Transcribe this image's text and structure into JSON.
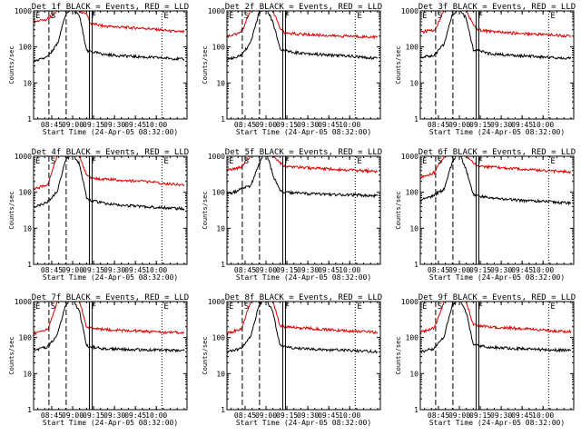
{
  "colors": {
    "events": "#000000",
    "lld": "#e00000",
    "axes": "#000000",
    "background": "#ffffff"
  },
  "shared": {
    "xlabel": "Start Time (24-Apr-05 08:32:00)",
    "ylabel": "Counts/sec",
    "x_ticks": [
      "08:45",
      "09:00",
      "09:15",
      "09:30",
      "09:45",
      "10:00"
    ],
    "y_ticks": [
      "1",
      "10",
      "100",
      "1000"
    ],
    "ylim": [
      1,
      1000
    ],
    "xlim_minutes_after_start": [
      0,
      110
    ],
    "y_scale": "log",
    "markers": {
      "E1": {
        "label": "E",
        "minute": 0,
        "style": "dotted"
      },
      "S": {
        "label": "S",
        "minute": 11,
        "style": "dashed"
      },
      "F": {
        "label": "F",
        "minute": 40,
        "style": "solid-double"
      },
      "E2": {
        "label": "E",
        "minute": 92,
        "style": "dotted"
      }
    }
  },
  "chart_data": [
    {
      "type": "line",
      "title": "Det 1f BLACK = Events, RED = LLD",
      "series": [
        {
          "name": "Events",
          "x": [
            0,
            5,
            10,
            11,
            17,
            23,
            26,
            29,
            33,
            38,
            41,
            50,
            60,
            70,
            80,
            90,
            100,
            108
          ],
          "values": [
            40,
            45,
            52,
            60,
            120,
            800,
            1000,
            1000,
            700,
            80,
            75,
            62,
            58,
            55,
            52,
            50,
            48,
            45
          ]
        },
        {
          "name": "LLD",
          "x": [
            0,
            5,
            10,
            11,
            17,
            23,
            26,
            29,
            33,
            38,
            41,
            50,
            60,
            70,
            80,
            90,
            100,
            108
          ],
          "values": [
            500,
            550,
            600,
            650,
            1000,
            1000,
            1000,
            1000,
            1000,
            800,
            450,
            380,
            360,
            340,
            330,
            300,
            270,
            260
          ]
        }
      ]
    },
    {
      "type": "line",
      "title": "Det 2f BLACK = Events, RED = LLD",
      "series": [
        {
          "name": "Events",
          "x": [
            0,
            5,
            10,
            11,
            17,
            23,
            26,
            29,
            33,
            38,
            41,
            50,
            60,
            70,
            80,
            90,
            100,
            108
          ],
          "values": [
            45,
            50,
            60,
            65,
            130,
            900,
            1000,
            1000,
            500,
            90,
            80,
            70,
            65,
            60,
            58,
            55,
            50,
            50
          ]
        },
        {
          "name": "LLD",
          "x": [
            0,
            5,
            10,
            11,
            17,
            23,
            26,
            29,
            33,
            38,
            41,
            50,
            60,
            70,
            80,
            90,
            100,
            108
          ],
          "values": [
            200,
            220,
            260,
            300,
            1000,
            1000,
            1000,
            1000,
            1000,
            350,
            250,
            230,
            220,
            210,
            200,
            200,
            190,
            190
          ]
        }
      ]
    },
    {
      "type": "line",
      "title": "Det 3f BLACK = Events, RED = LLD",
      "series": [
        {
          "name": "Events",
          "x": [
            0,
            5,
            10,
            11,
            17,
            23,
            26,
            29,
            33,
            38,
            41,
            50,
            60,
            70,
            80,
            90,
            100,
            108
          ],
          "values": [
            50,
            55,
            60,
            65,
            120,
            800,
            1000,
            1000,
            600,
            85,
            80,
            65,
            60,
            58,
            55,
            52,
            50,
            48
          ]
        },
        {
          "name": "LLD",
          "x": [
            0,
            5,
            10,
            11,
            17,
            23,
            26,
            29,
            33,
            38,
            41,
            50,
            60,
            70,
            80,
            90,
            100,
            108
          ],
          "values": [
            250,
            280,
            300,
            330,
            1000,
            1000,
            1000,
            1000,
            1000,
            400,
            300,
            270,
            250,
            240,
            230,
            220,
            210,
            200
          ]
        }
      ]
    },
    {
      "type": "line",
      "title": "Det 4f BLACK = Events, RED = LLD",
      "series": [
        {
          "name": "Events",
          "x": [
            0,
            5,
            10,
            11,
            17,
            23,
            26,
            29,
            33,
            38,
            41,
            50,
            60,
            70,
            80,
            90,
            100,
            108
          ],
          "values": [
            40,
            45,
            55,
            60,
            110,
            800,
            1000,
            1000,
            600,
            70,
            60,
            50,
            45,
            42,
            40,
            38,
            36,
            35
          ]
        },
        {
          "name": "LLD",
          "x": [
            0,
            5,
            10,
            11,
            17,
            23,
            26,
            29,
            33,
            38,
            41,
            50,
            60,
            70,
            80,
            90,
            100,
            108
          ],
          "values": [
            120,
            140,
            160,
            200,
            1000,
            1000,
            1000,
            1000,
            1000,
            300,
            250,
            230,
            220,
            210,
            200,
            180,
            170,
            160
          ]
        }
      ]
    },
    {
      "type": "line",
      "title": "Det 5f BLACK = Events, RED = LLD",
      "series": [
        {
          "name": "Events",
          "x": [
            0,
            5,
            10,
            11,
            17,
            23,
            26,
            29,
            33,
            38,
            41,
            50,
            60,
            70,
            80,
            90,
            100,
            108
          ],
          "values": [
            90,
            100,
            120,
            130,
            150,
            600,
            1000,
            1000,
            300,
            110,
            100,
            95,
            90,
            88,
            85,
            85,
            82,
            80
          ]
        },
        {
          "name": "LLD",
          "x": [
            0,
            5,
            10,
            11,
            17,
            23,
            26,
            29,
            33,
            38,
            41,
            50,
            60,
            70,
            80,
            90,
            100,
            108
          ],
          "values": [
            400,
            450,
            500,
            550,
            1000,
            1000,
            1000,
            1000,
            1000,
            650,
            550,
            500,
            470,
            450,
            430,
            410,
            390,
            380
          ]
        }
      ]
    },
    {
      "type": "line",
      "title": "Det 6f BLACK = Events, RED = LLD",
      "series": [
        {
          "name": "Events",
          "x": [
            0,
            5,
            10,
            11,
            17,
            23,
            26,
            29,
            33,
            38,
            41,
            50,
            60,
            70,
            80,
            90,
            100,
            108
          ],
          "values": [
            60,
            70,
            80,
            90,
            120,
            700,
            1000,
            1000,
            400,
            90,
            80,
            70,
            65,
            60,
            58,
            55,
            52,
            50
          ]
        },
        {
          "name": "LLD",
          "x": [
            0,
            5,
            10,
            11,
            17,
            23,
            26,
            29,
            33,
            38,
            41,
            50,
            60,
            70,
            80,
            90,
            100,
            108
          ],
          "values": [
            250,
            300,
            350,
            400,
            1000,
            1000,
            1000,
            1000,
            1000,
            650,
            550,
            500,
            470,
            450,
            420,
            400,
            380,
            360
          ]
        }
      ]
    },
    {
      "type": "line",
      "title": "Det 7f BLACK = Events, RED = LLD",
      "series": [
        {
          "name": "Events",
          "x": [
            0,
            5,
            10,
            11,
            17,
            23,
            26,
            29,
            33,
            38,
            41,
            50,
            60,
            70,
            80,
            90,
            100,
            108
          ],
          "values": [
            45,
            50,
            55,
            60,
            120,
            800,
            1000,
            1000,
            500,
            60,
            55,
            50,
            48,
            47,
            46,
            45,
            44,
            43
          ]
        },
        {
          "name": "LLD",
          "x": [
            0,
            5,
            10,
            11,
            17,
            23,
            26,
            29,
            33,
            38,
            41,
            50,
            60,
            70,
            80,
            90,
            100,
            108
          ],
          "values": [
            130,
            150,
            170,
            200,
            1000,
            1000,
            1000,
            1000,
            1000,
            200,
            180,
            170,
            160,
            155,
            150,
            140,
            140,
            140
          ]
        }
      ]
    },
    {
      "type": "line",
      "title": "Det 8f BLACK = Events, RED = LLD",
      "series": [
        {
          "name": "Events",
          "x": [
            0,
            5,
            10,
            11,
            17,
            23,
            26,
            29,
            33,
            38,
            41,
            50,
            60,
            70,
            80,
            90,
            100,
            108
          ],
          "values": [
            40,
            45,
            50,
            55,
            110,
            800,
            1000,
            1000,
            500,
            60,
            55,
            50,
            48,
            46,
            45,
            44,
            42,
            40
          ]
        },
        {
          "name": "LLD",
          "x": [
            0,
            5,
            10,
            11,
            17,
            23,
            26,
            29,
            33,
            38,
            41,
            50,
            60,
            70,
            80,
            90,
            100,
            108
          ],
          "values": [
            130,
            150,
            180,
            200,
            1000,
            1000,
            1000,
            1000,
            1000,
            220,
            200,
            190,
            180,
            170,
            160,
            150,
            150,
            140
          ]
        }
      ]
    },
    {
      "type": "line",
      "title": "Det 9f BLACK = Events, RED = LLD",
      "series": [
        {
          "name": "Events",
          "x": [
            0,
            5,
            10,
            11,
            17,
            23,
            26,
            29,
            33,
            38,
            41,
            50,
            60,
            70,
            80,
            90,
            100,
            108
          ],
          "values": [
            40,
            45,
            50,
            55,
            110,
            800,
            1000,
            1000,
            500,
            65,
            60,
            55,
            52,
            50,
            48,
            46,
            45,
            44
          ]
        },
        {
          "name": "LLD",
          "x": [
            0,
            5,
            10,
            11,
            17,
            23,
            26,
            29,
            33,
            38,
            41,
            50,
            60,
            70,
            80,
            90,
            100,
            108
          ],
          "values": [
            140,
            160,
            190,
            220,
            1000,
            1000,
            1000,
            1000,
            1000,
            230,
            210,
            200,
            190,
            180,
            170,
            160,
            150,
            150
          ]
        }
      ]
    }
  ]
}
